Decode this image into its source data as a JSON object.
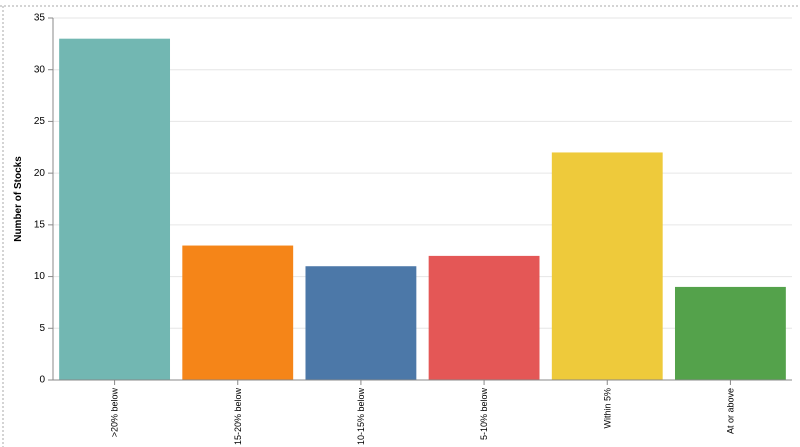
{
  "chart_data": {
    "type": "bar",
    "y_label": "Number of Stocks",
    "categories": [
      ">20% below",
      "15-20% below",
      "10-15% below",
      "5-10% below",
      "Within 5%",
      "At or above"
    ],
    "values": [
      33,
      13,
      11,
      12,
      22,
      9
    ],
    "colors": [
      "#72b7b2",
      "#f58518",
      "#4c78a8",
      "#e45756",
      "#eeca3b",
      "#54a24b"
    ],
    "ylim": [
      0,
      35
    ],
    "yticks": [
      0,
      5,
      10,
      15,
      20,
      25,
      30,
      35
    ],
    "grid": true
  }
}
